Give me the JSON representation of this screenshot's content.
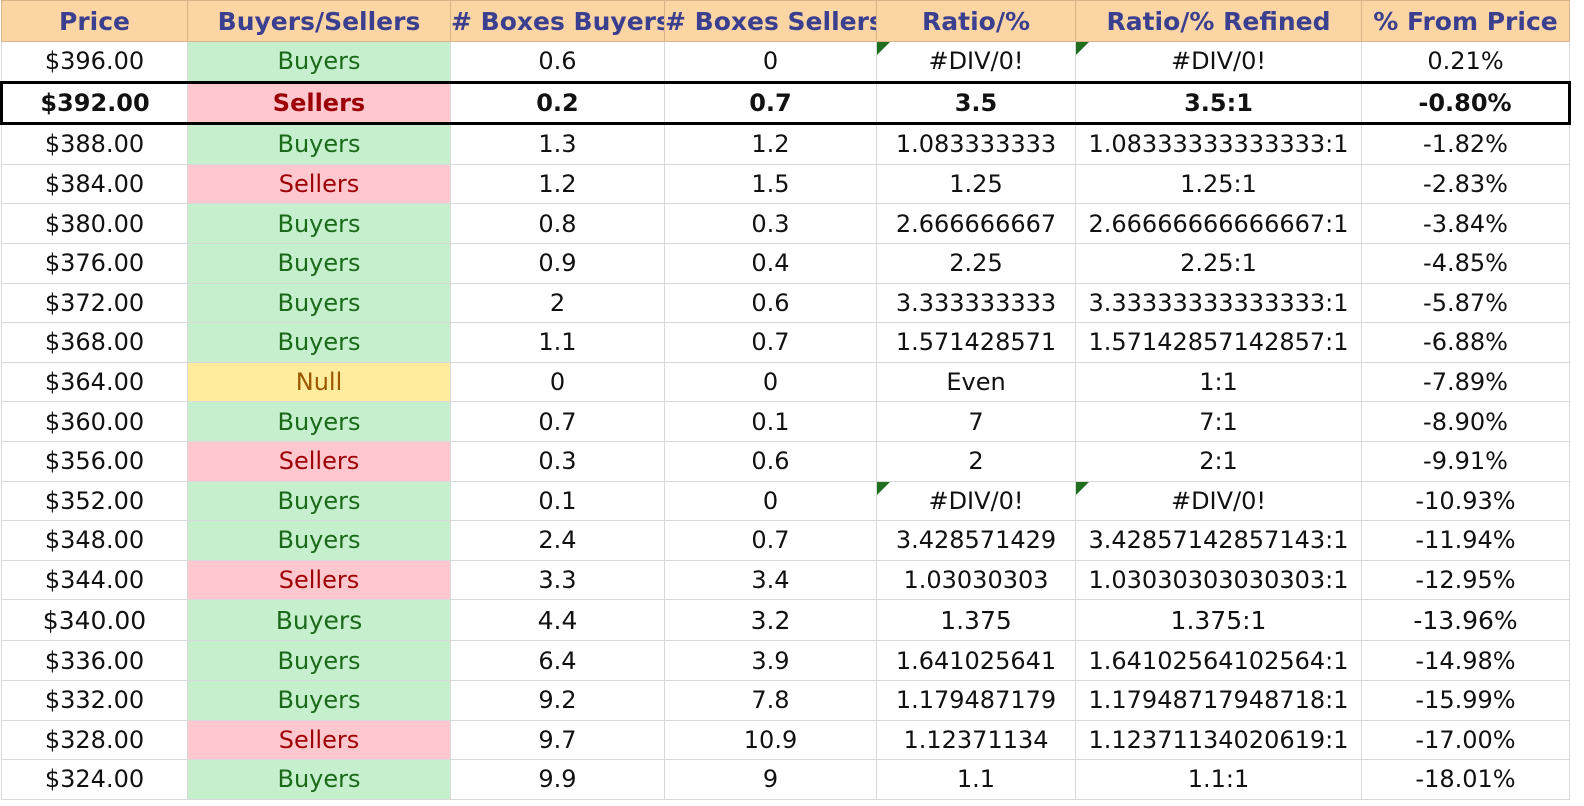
{
  "headers": {
    "price": "Price",
    "buyers_sellers": "Buyers/Sellers",
    "boxes_buyers": "# Boxes Buyers",
    "boxes_sellers": "# Boxes Sellers",
    "ratio": "Ratio/%",
    "ratio_refined": "Ratio/% Refined",
    "from_price": "% From Price"
  },
  "colors": {
    "header_bg": "#fcd5a4",
    "header_text": "#3b3f8f",
    "buyers_bg": "#c6efce",
    "buyers_text": "#1a6a1a",
    "sellers_bg": "#ffc7ce",
    "sellers_text": "#9c0006",
    "null_bg": "#ffeb9c",
    "null_text": "#9c5700",
    "error_flag": "#1f6f1f"
  },
  "rows": [
    {
      "price": "$396.00",
      "side": "Buyers",
      "boxes_buyers": "0.6",
      "boxes_sellers": "0",
      "ratio": "#DIV/0!",
      "ratio_refined": "#DIV/0!",
      "from_price": "0.21%"
    },
    {
      "price": "$392.00",
      "side": "Sellers",
      "boxes_buyers": "0.2",
      "boxes_sellers": "0.7",
      "ratio": "3.5",
      "ratio_refined": "3.5:1",
      "from_price": "-0.80%"
    },
    {
      "price": "$388.00",
      "side": "Buyers",
      "boxes_buyers": "1.3",
      "boxes_sellers": "1.2",
      "ratio": "1.083333333",
      "ratio_refined": "1.08333333333333:1",
      "from_price": "-1.82%"
    },
    {
      "price": "$384.00",
      "side": "Sellers",
      "boxes_buyers": "1.2",
      "boxes_sellers": "1.5",
      "ratio": "1.25",
      "ratio_refined": "1.25:1",
      "from_price": "-2.83%"
    },
    {
      "price": "$380.00",
      "side": "Buyers",
      "boxes_buyers": "0.8",
      "boxes_sellers": "0.3",
      "ratio": "2.666666667",
      "ratio_refined": "2.66666666666667:1",
      "from_price": "-3.84%"
    },
    {
      "price": "$376.00",
      "side": "Buyers",
      "boxes_buyers": "0.9",
      "boxes_sellers": "0.4",
      "ratio": "2.25",
      "ratio_refined": "2.25:1",
      "from_price": "-4.85%"
    },
    {
      "price": "$372.00",
      "side": "Buyers",
      "boxes_buyers": "2",
      "boxes_sellers": "0.6",
      "ratio": "3.333333333",
      "ratio_refined": "3.33333333333333:1",
      "from_price": "-5.87%"
    },
    {
      "price": "$368.00",
      "side": "Buyers",
      "boxes_buyers": "1.1",
      "boxes_sellers": "0.7",
      "ratio": "1.571428571",
      "ratio_refined": "1.57142857142857:1",
      "from_price": "-6.88%"
    },
    {
      "price": "$364.00",
      "side": "Null",
      "boxes_buyers": "0",
      "boxes_sellers": "0",
      "ratio": "Even",
      "ratio_refined": "1:1",
      "from_price": "-7.89%"
    },
    {
      "price": "$360.00",
      "side": "Buyers",
      "boxes_buyers": "0.7",
      "boxes_sellers": "0.1",
      "ratio": "7",
      "ratio_refined": "7:1",
      "from_price": "-8.90%"
    },
    {
      "price": "$356.00",
      "side": "Sellers",
      "boxes_buyers": "0.3",
      "boxes_sellers": "0.6",
      "ratio": "2",
      "ratio_refined": "2:1",
      "from_price": "-9.91%"
    },
    {
      "price": "$352.00",
      "side": "Buyers",
      "boxes_buyers": "0.1",
      "boxes_sellers": "0",
      "ratio": "#DIV/0!",
      "ratio_refined": "#DIV/0!",
      "from_price": "-10.93%"
    },
    {
      "price": "$348.00",
      "side": "Buyers",
      "boxes_buyers": "2.4",
      "boxes_sellers": "0.7",
      "ratio": "3.428571429",
      "ratio_refined": "3.42857142857143:1",
      "from_price": "-11.94%"
    },
    {
      "price": "$344.00",
      "side": "Sellers",
      "boxes_buyers": "3.3",
      "boxes_sellers": "3.4",
      "ratio": "1.03030303",
      "ratio_refined": "1.03030303030303:1",
      "from_price": "-12.95%"
    },
    {
      "price": "$340.00",
      "side": "Buyers",
      "boxes_buyers": "4.4",
      "boxes_sellers": "3.2",
      "ratio": "1.375",
      "ratio_refined": "1.375:1",
      "from_price": "-13.96%"
    },
    {
      "price": "$336.00",
      "side": "Buyers",
      "boxes_buyers": "6.4",
      "boxes_sellers": "3.9",
      "ratio": "1.641025641",
      "ratio_refined": "1.64102564102564:1",
      "from_price": "-14.98%"
    },
    {
      "price": "$332.00",
      "side": "Buyers",
      "boxes_buyers": "9.2",
      "boxes_sellers": "7.8",
      "ratio": "1.179487179",
      "ratio_refined": "1.17948717948718:1",
      "from_price": "-15.99%"
    },
    {
      "price": "$328.00",
      "side": "Sellers",
      "boxes_buyers": "9.7",
      "boxes_sellers": "10.9",
      "ratio": "1.12371134",
      "ratio_refined": "1.12371134020619:1",
      "from_price": "-17.00%"
    },
    {
      "price": "$324.00",
      "side": "Buyers",
      "boxes_buyers": "9.9",
      "boxes_sellers": "9",
      "ratio": "1.1",
      "ratio_refined": "1.1:1",
      "from_price": "-18.01%"
    }
  ]
}
